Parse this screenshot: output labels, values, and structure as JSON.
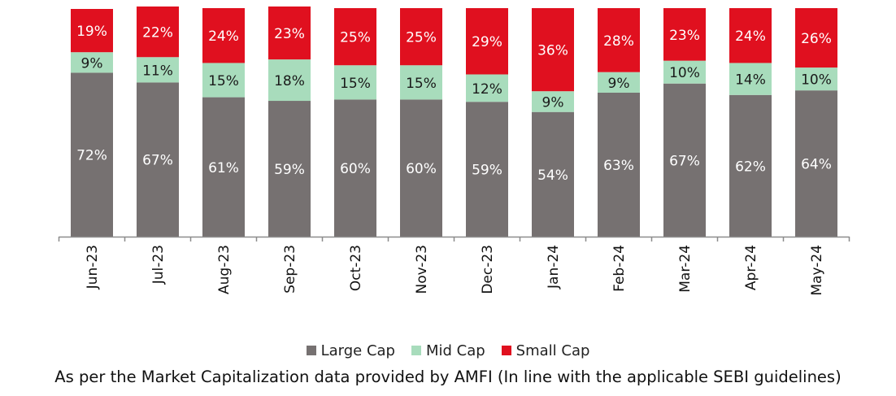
{
  "chart_data": {
    "type": "bar",
    "stacked": true,
    "categories": [
      "Jun-23",
      "Jul-23",
      "Aug-23",
      "Sep-23",
      "Oct-23",
      "Nov-23",
      "Dec-23",
      "Jan-24",
      "Feb-24",
      "Mar-24",
      "Apr-24",
      "May-24"
    ],
    "series": [
      {
        "name": "Large Cap",
        "color": "#767171",
        "values": [
          72,
          67,
          61,
          59,
          60,
          60,
          59,
          54,
          63,
          67,
          62,
          64
        ]
      },
      {
        "name": "Mid Cap",
        "color": "#a8dcbc",
        "values": [
          9,
          11,
          15,
          18,
          15,
          15,
          12,
          9,
          9,
          10,
          14,
          10
        ]
      },
      {
        "name": "Small Cap",
        "color": "#e0101f",
        "values": [
          19,
          22,
          24,
          23,
          25,
          25,
          29,
          36,
          28,
          23,
          24,
          26
        ]
      }
    ],
    "value_suffix": "%",
    "legend_position": "bottom",
    "grid": false,
    "title": "",
    "xlabel": "",
    "ylabel": ""
  },
  "footnote": "As per the Market Capitalization data provided by AMFI (In line with the applicable SEBI guidelines)"
}
